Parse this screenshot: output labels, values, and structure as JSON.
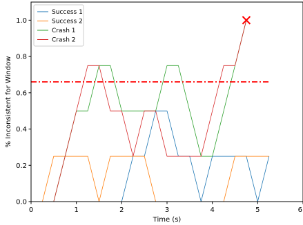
{
  "chart_data": {
    "type": "line",
    "xlabel": "Time (s)",
    "ylabel": "% Inconsistent for Window",
    "xlim": [
      0,
      6
    ],
    "ylim": [
      0,
      1.1
    ],
    "xticks": [
      "0",
      "1",
      "2",
      "3",
      "4",
      "5",
      "6"
    ],
    "yticks": [
      "0.0",
      "0.2",
      "0.4",
      "0.6",
      "0.8",
      "1.0"
    ],
    "grid": false,
    "legend_position": "top-left",
    "series": [
      {
        "name": "Success 1",
        "color": "#1f77b4",
        "x": [
          0,
          2.0,
          2.25,
          2.5,
          2.75,
          3.0,
          3.25,
          3.5,
          3.75,
          4.0,
          4.25,
          4.5,
          4.75,
          5.0,
          5.25
        ],
        "y": [
          0,
          0,
          0.25,
          0.25,
          0.5,
          0.5,
          0.25,
          0.25,
          0,
          0.25,
          0.25,
          0.25,
          0.25,
          0,
          0.25
        ]
      },
      {
        "name": "Success 2",
        "color": "#ff7f0e",
        "x": [
          0,
          0.25,
          0.5,
          0.75,
          1.0,
          1.25,
          1.5,
          1.75,
          2.0,
          2.25,
          2.5,
          2.75,
          3.0,
          3.25,
          3.5,
          3.75,
          4.0,
          4.25,
          4.5,
          4.75,
          5.0,
          5.25
        ],
        "y": [
          0,
          0,
          0.25,
          0.25,
          0.25,
          0.25,
          0,
          0.25,
          0.25,
          0.25,
          0.25,
          0,
          0,
          0,
          0,
          0,
          0,
          0,
          0.25,
          0.25,
          0.25,
          0.25
        ]
      },
      {
        "name": "Crash 1",
        "color": "#2ca02c",
        "x": [
          0,
          0.5,
          0.75,
          1.0,
          1.25,
          1.5,
          1.75,
          2.0,
          2.25,
          2.5,
          2.75,
          3.0,
          3.25,
          3.5,
          3.75,
          4.0,
          4.25,
          4.5,
          4.75
        ],
        "y": [
          0,
          0,
          0.25,
          0.5,
          0.5,
          0.75,
          0.75,
          0.5,
          0.5,
          0.5,
          0.5,
          0.75,
          0.75,
          0.5,
          0.25,
          0.25,
          0.5,
          0.75,
          1.0
        ]
      },
      {
        "name": "Crash 2",
        "color": "#d62728",
        "x": [
          0,
          0.5,
          0.75,
          1.0,
          1.25,
          1.5,
          1.75,
          2.0,
          2.25,
          2.5,
          2.75,
          3.0,
          3.25,
          3.5,
          3.75,
          4.0,
          4.25,
          4.5,
          4.75
        ],
        "y": [
          0,
          0,
          0.25,
          0.5,
          0.75,
          0.75,
          0.5,
          0.5,
          0.25,
          0.5,
          0.5,
          0.25,
          0.25,
          0.25,
          0.25,
          0.5,
          0.75,
          0.75,
          1.0
        ]
      }
    ],
    "threshold": {
      "y": 0.66,
      "x_start": 0,
      "x_end": 5.25,
      "color": "#ff0000",
      "style": "dash-dot"
    },
    "crash_marker": {
      "x": 4.75,
      "y": 1.0,
      "color": "#ff0000",
      "symbol": "x"
    }
  }
}
